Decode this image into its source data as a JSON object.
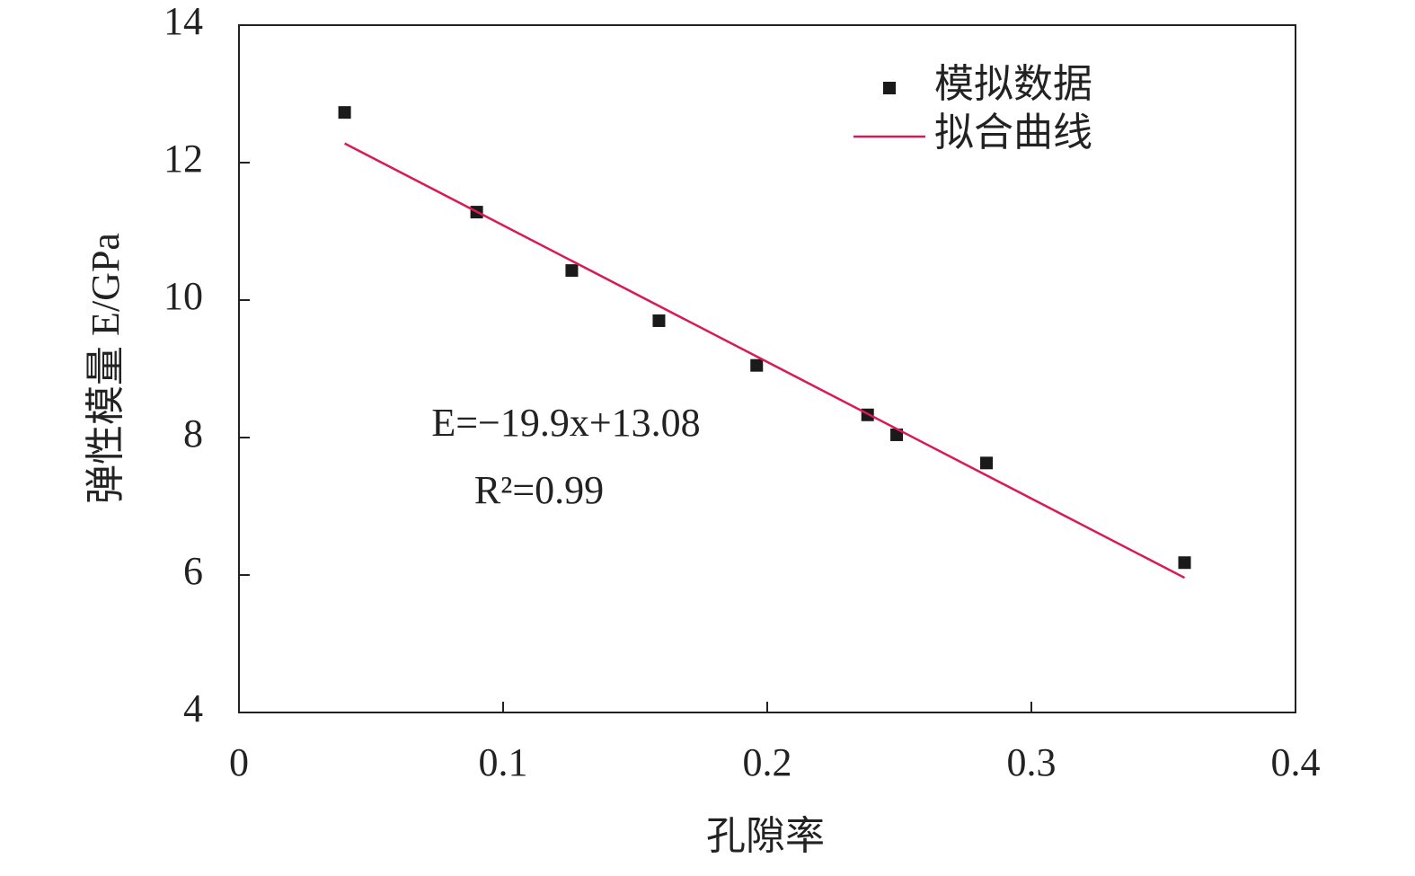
{
  "chart_data": {
    "type": "scatter",
    "xlabel": "孔隙率",
    "ylabel": "弹性模量 E/GPa",
    "xlim": [
      0,
      0.4
    ],
    "xticks": [
      0,
      0.1,
      0.2,
      0.3,
      0.4
    ],
    "ylim": [
      4,
      14
    ],
    "yticks": [
      4,
      6,
      8,
      10,
      12,
      14
    ],
    "series": [
      {
        "name": "模拟数据",
        "color": "#1a1a1a",
        "kind": "points",
        "x": [
          0.04,
          0.09,
          0.126,
          0.159,
          0.196,
          0.238,
          0.249,
          0.283,
          0.358
        ],
        "values": [
          12.73,
          11.28,
          10.43,
          9.7,
          9.05,
          8.33,
          8.04,
          7.63,
          6.18
        ]
      },
      {
        "name": "拟合曲线",
        "color": "#d81b55",
        "kind": "line",
        "x": [
          0.04,
          0.358
        ],
        "values": [
          12.28,
          5.96
        ]
      }
    ],
    "annotations": [
      "E=−19.9x+13.08",
      "R²=0.99"
    ],
    "legend": "upper right"
  }
}
